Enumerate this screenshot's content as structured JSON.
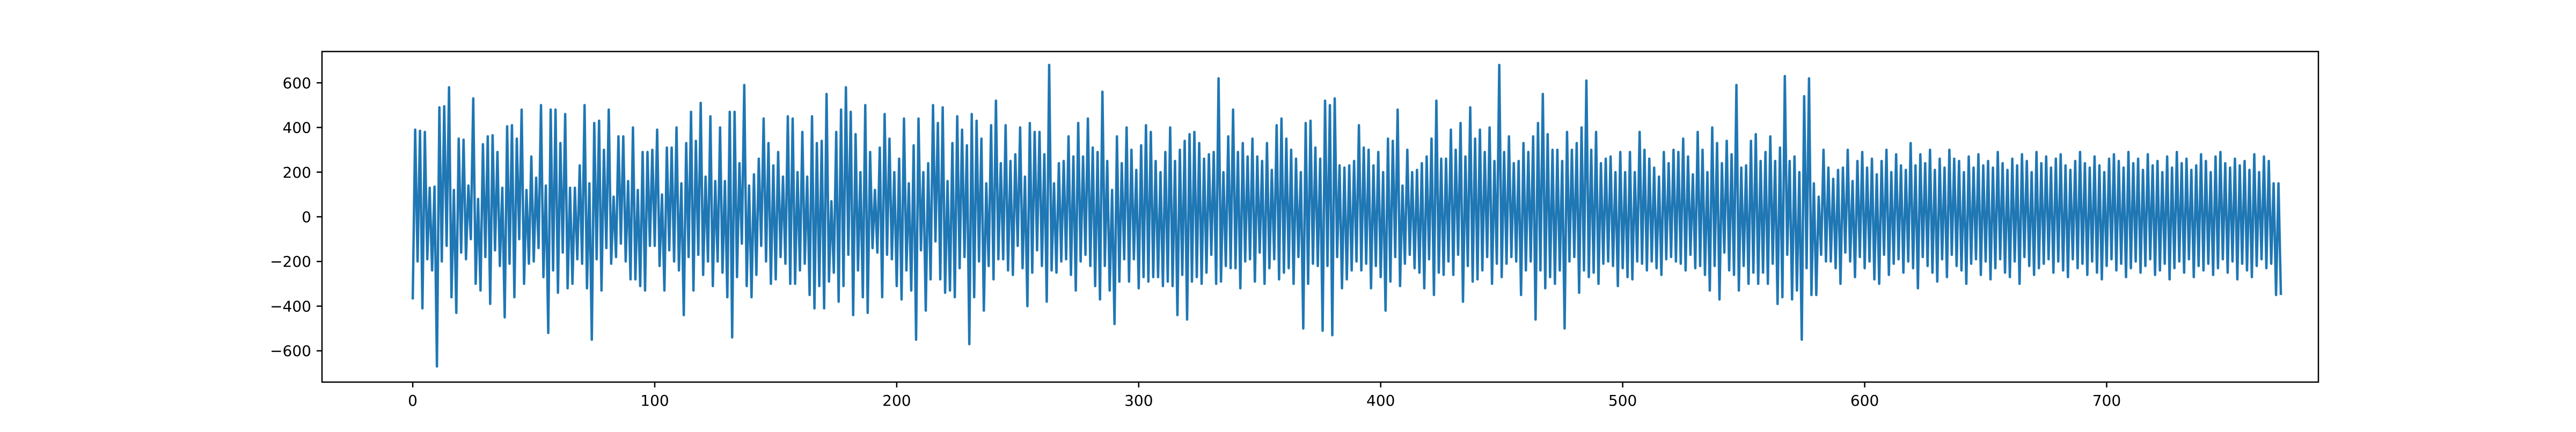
{
  "chart_data": {
    "type": "line",
    "title": "",
    "xlabel": "",
    "ylabel": "",
    "xlim": [
      -37.5,
      787.5
    ],
    "ylim": [
      -740,
      740
    ],
    "xticks": [
      0,
      100,
      200,
      300,
      400,
      500,
      600,
      700
    ],
    "yticks": [
      -600,
      -400,
      -200,
      0,
      200,
      400,
      600
    ],
    "xtick_labels": [
      "0",
      "100",
      "200",
      "300",
      "400",
      "500",
      "600",
      "700"
    ],
    "ytick_labels": [
      "−600",
      "−400",
      "−200",
      "0",
      "200",
      "400",
      "600"
    ],
    "grid": false,
    "legend": "none",
    "colors": {
      "line": "#1f77b4",
      "axes": "#000000",
      "background": "#ffffff"
    },
    "series": [
      {
        "color": "#1f77b4",
        "x_start": 0,
        "x_step": 1,
        "values": [
          -370,
          390,
          -200,
          385,
          -410,
          380,
          -190,
          130,
          -240,
          135,
          -670,
          490,
          -200,
          495,
          -130,
          580,
          -360,
          120,
          -430,
          350,
          -160,
          345,
          -190,
          140,
          -100,
          530,
          -300,
          80,
          -330,
          325,
          -180,
          360,
          -390,
          365,
          -150,
          290,
          -220,
          130,
          -450,
          405,
          -210,
          410,
          -360,
          350,
          -100,
          480,
          -300,
          120,
          -210,
          270,
          -200,
          175,
          -140,
          500,
          -270,
          140,
          -520,
          480,
          -240,
          480,
          -340,
          330,
          -160,
          460,
          -320,
          130,
          -300,
          130,
          -190,
          230,
          -210,
          500,
          -320,
          150,
          -550,
          420,
          -190,
          430,
          -330,
          300,
          -140,
          480,
          -210,
          90,
          -180,
          360,
          -120,
          360,
          -200,
          160,
          -280,
          400,
          -280,
          120,
          -310,
          290,
          -330,
          290,
          -130,
          300,
          -130,
          390,
          -220,
          100,
          -330,
          310,
          -150,
          310,
          -200,
          400,
          -240,
          150,
          -440,
          330,
          -180,
          470,
          -330,
          340,
          -170,
          510,
          -260,
          180,
          -200,
          450,
          -310,
          160,
          -200,
          400,
          -250,
          160,
          -360,
          470,
          -540,
          470,
          -270,
          240,
          -120,
          590,
          -310,
          140,
          -360,
          190,
          -260,
          260,
          -130,
          440,
          -200,
          330,
          -300,
          230,
          -280,
          290,
          -180,
          180,
          -210,
          450,
          -300,
          440,
          -300,
          200,
          -240,
          380,
          -210,
          180,
          -350,
          450,
          -410,
          330,
          -310,
          340,
          -410,
          550,
          -290,
          70,
          -250,
          380,
          -380,
          480,
          -310,
          580,
          -170,
          470,
          -440,
          370,
          -240,
          200,
          -360,
          500,
          -430,
          290,
          -140,
          120,
          -160,
          310,
          -360,
          460,
          -170,
          350,
          -190,
          200,
          -310,
          260,
          -370,
          440,
          -240,
          150,
          -330,
          320,
          -550,
          440,
          -150,
          200,
          -420,
          240,
          -280,
          500,
          -110,
          420,
          -280,
          490,
          -340,
          160,
          -330,
          330,
          -360,
          450,
          -230,
          390,
          -180,
          320,
          -570,
          460,
          -360,
          430,
          -200,
          350,
          -420,
          150,
          -220,
          410,
          -280,
          520,
          -190,
          240,
          -190,
          410,
          -240,
          250,
          -260,
          280,
          -130,
          400,
          -230,
          180,
          -400,
          420,
          -250,
          380,
          -150,
          380,
          -220,
          280,
          -380,
          680,
          -240,
          150,
          -250,
          240,
          -200,
          250,
          -190,
          360,
          -260,
          270,
          -330,
          420,
          -200,
          270,
          -170,
          440,
          -220,
          310,
          -310,
          290,
          -370,
          560,
          -220,
          250,
          -330,
          120,
          -480,
          360,
          -290,
          240,
          -190,
          400,
          -290,
          300,
          -190,
          210,
          -320,
          320,
          -270,
          410,
          -290,
          380,
          -270,
          250,
          -270,
          200,
          -310,
          290,
          -290,
          400,
          -310,
          250,
          -440,
          300,
          -260,
          340,
          -460,
          370,
          -290,
          380,
          -270,
          330,
          -300,
          260,
          -250,
          280,
          -170,
          290,
          -300,
          620,
          -290,
          200,
          -220,
          360,
          -230,
          480,
          -230,
          290,
          -320,
          330,
          -200,
          270,
          -190,
          350,
          -290,
          270,
          -160,
          250,
          -300,
          330,
          -230,
          210,
          -190,
          410,
          -280,
          440,
          -250,
          350,
          -230,
          300,
          -300,
          260,
          -180,
          200,
          -500,
          420,
          -300,
          430,
          -210,
          310,
          -220,
          260,
          -510,
          520,
          -220,
          500,
          -530,
          530,
          -180,
          230,
          -320,
          220,
          -280,
          230,
          -240,
          250,
          -200,
          410,
          -240,
          310,
          -210,
          300,
          -320,
          230,
          -220,
          290,
          -270,
          200,
          -420,
          350,
          -290,
          340,
          -180,
          480,
          -310,
          140,
          -210,
          300,
          -170,
          200,
          -230,
          210,
          -250,
          240,
          -320,
          270,
          -190,
          350,
          -350,
          520,
          -250,
          260,
          -260,
          260,
          -200,
          390,
          -260,
          300,
          -170,
          420,
          -380,
          270,
          -220,
          490,
          -290,
          350,
          -280,
          390,
          -240,
          290,
          -180,
          400,
          -300,
          250,
          -210,
          680,
          -270,
          290,
          -210,
          360,
          -180,
          240,
          -200,
          250,
          -350,
          330,
          -240,
          290,
          -200,
          360,
          -460,
          420,
          -240,
          550,
          -320,
          370,
          -270,
          300,
          -300,
          300,
          -240,
          250,
          -500,
          380,
          -200,
          300,
          -180,
          330,
          -340,
          400,
          -240,
          610,
          -270,
          300,
          -250,
          380,
          -300,
          240,
          -210,
          260,
          -200,
          270,
          -220,
          200,
          -310,
          290,
          -230,
          200,
          -270,
          290,
          -280,
          200,
          -200,
          380,
          -210,
          300,
          -240,
          260,
          -200,
          220,
          -230,
          180,
          -260,
          290,
          -190,
          240,
          -180,
          300,
          -200,
          290,
          -210,
          350,
          -240,
          270,
          -170,
          190,
          -230,
          380,
          -220,
          300,
          -260,
          200,
          -330,
          400,
          -220,
          330,
          -370,
          240,
          -160,
          340,
          -240,
          280,
          -260,
          590,
          -330,
          220,
          -220,
          230,
          -300,
          340,
          -250,
          370,
          -300,
          250,
          -250,
          290,
          -300,
          360,
          -210,
          250,
          -390,
          310,
          -360,
          630,
          -170,
          250,
          -370,
          270,
          -330,
          200,
          -550,
          540,
          -230,
          620,
          -350,
          150,
          -350,
          90,
          -170,
          300,
          -200,
          220,
          -200,
          170,
          -230,
          210,
          -300,
          220,
          -160,
          300,
          -200,
          160,
          -270,
          250,
          -180,
          290,
          -230,
          220,
          -200,
          260,
          -280,
          190,
          -300,
          250,
          -170,
          300,
          -260,
          200,
          -210,
          280,
          -190,
          230,
          -250,
          210,
          -200,
          330,
          -230,
          230,
          -320,
          280,
          -180,
          240,
          -220,
          300,
          -250,
          210,
          -290,
          260,
          -190,
          220,
          -270,
          300,
          -170,
          260,
          -220,
          250,
          -240,
          200,
          -300,
          270,
          -210,
          220,
          -190,
          280,
          -260,
          230,
          -200,
          250,
          -280,
          220,
          -230,
          290,
          -190,
          240,
          -250,
          210,
          -270,
          260,
          -200,
          230,
          -300,
          280,
          -180,
          250,
          -220,
          200,
          -260,
          290,
          -230,
          240,
          -210,
          270,
          -190,
          220,
          -250,
          260,
          -200,
          280,
          -240,
          230,
          -270,
          210,
          -190,
          250,
          -230,
          290,
          -210,
          240,
          -260,
          220,
          -200,
          270,
          -250,
          230,
          -280,
          200,
          -220,
          260,
          -190,
          280,
          -240,
          250,
          -210,
          220,
          -270,
          290,
          -230,
          240,
          -200,
          260,
          -250,
          210,
          -220,
          280,
          -190,
          230,
          -260,
          250,
          -240,
          200,
          -210,
          270,
          -280,
          220,
          -230,
          290,
          -200,
          240,
          -250,
          260,
          -190,
          210,
          -270,
          230,
          -220,
          280,
          -240,
          250,
          -210,
          200,
          -260,
          270,
          -230,
          290,
          -190,
          240,
          -250,
          220,
          -200,
          260,
          -280,
          230,
          -210,
          250,
          -240,
          210,
          -270,
          280,
          -220,
          200,
          -190,
          270,
          -230,
          250,
          -210,
          150,
          -350,
          150,
          -350
        ]
      }
    ]
  }
}
